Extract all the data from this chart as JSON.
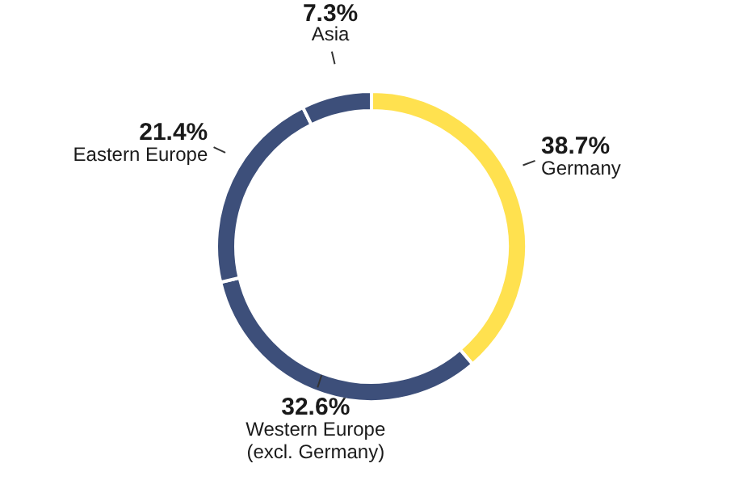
{
  "chart_data": {
    "type": "donut",
    "categories": [
      "Germany",
      "Western Europe\n(excl. Germany)",
      "Eastern Europe",
      "Asia"
    ],
    "values": [
      38.7,
      32.6,
      21.4,
      7.3
    ],
    "colors": [
      "#ffe14f",
      "#3d4f7a",
      "#3d4f7a",
      "#3d4f7a"
    ],
    "value_labels": [
      "38.7%",
      "32.6%",
      "21.4%",
      "7.3%"
    ]
  }
}
